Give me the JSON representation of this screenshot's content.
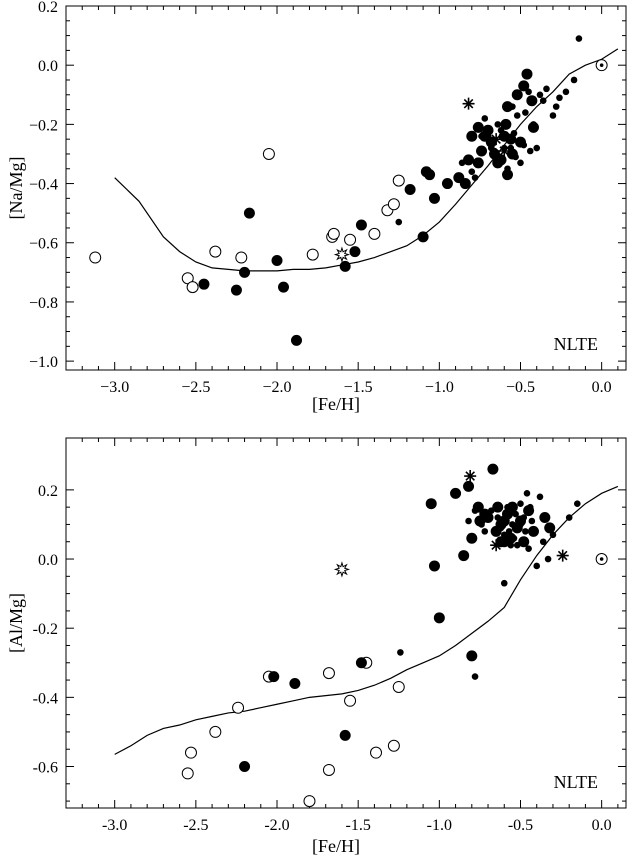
{
  "chart_data": [
    {
      "type": "scatter",
      "xlabel": "[Fe/H]",
      "ylabel": "[Na/Mg]",
      "annotation": "NLTE",
      "xlim": [
        -3.3,
        0.15
      ],
      "ylim": [
        -1.03,
        0.2
      ],
      "xticks": [
        -3.0,
        -2.5,
        -2.0,
        -1.5,
        -1.0,
        -0.5,
        0.0
      ],
      "xtick_labels": [
        "−3.0",
        "−2.5",
        "−2.0",
        "−1.5",
        "−1.0",
        "−0.5",
        "0.0"
      ],
      "yticks": [
        0.2,
        0.0,
        -0.2,
        -0.4,
        -0.6,
        -0.8,
        -1.0
      ],
      "ytick_labels": [
        "0.2",
        "0.0",
        "−0.2",
        "−0.4",
        "−0.6",
        "−0.8",
        "−1.0"
      ],
      "model_curve": [
        [
          -3.0,
          -0.38
        ],
        [
          -2.85,
          -0.46
        ],
        [
          -2.7,
          -0.58
        ],
        [
          -2.6,
          -0.63
        ],
        [
          -2.5,
          -0.665
        ],
        [
          -2.4,
          -0.685
        ],
        [
          -2.3,
          -0.69
        ],
        [
          -2.2,
          -0.695
        ],
        [
          -2.1,
          -0.695
        ],
        [
          -2.0,
          -0.695
        ],
        [
          -1.9,
          -0.69
        ],
        [
          -1.8,
          -0.69
        ],
        [
          -1.7,
          -0.685
        ],
        [
          -1.6,
          -0.675
        ],
        [
          -1.5,
          -0.665
        ],
        [
          -1.4,
          -0.65
        ],
        [
          -1.3,
          -0.63
        ],
        [
          -1.2,
          -0.61
        ],
        [
          -1.1,
          -0.575
        ],
        [
          -1.0,
          -0.53
        ],
        [
          -0.9,
          -0.47
        ],
        [
          -0.8,
          -0.405
        ],
        [
          -0.7,
          -0.34
        ],
        [
          -0.6,
          -0.27
        ],
        [
          -0.5,
          -0.2
        ],
        [
          -0.4,
          -0.14
        ],
        [
          -0.3,
          -0.09
        ],
        [
          -0.2,
          -0.03
        ],
        [
          -0.1,
          0.0
        ],
        [
          0.0,
          0.02
        ],
        [
          0.1,
          0.055
        ]
      ],
      "series": [
        {
          "name": "",
          "marker": "open-circle",
          "points": [
            [
              -3.12,
              -0.65
            ],
            [
              -2.55,
              -0.72
            ],
            [
              -2.52,
              -0.75
            ],
            [
              -2.38,
              -0.63
            ],
            [
              -2.22,
              -0.65
            ],
            [
              -2.05,
              -0.3
            ],
            [
              -1.78,
              -0.64
            ],
            [
              -1.66,
              -0.58
            ],
            [
              -1.65,
              -0.57
            ],
            [
              -1.55,
              -0.59
            ],
            [
              -1.4,
              -0.57
            ],
            [
              -1.32,
              -0.49
            ],
            [
              -1.28,
              -0.47
            ],
            [
              -1.25,
              -0.39
            ]
          ]
        },
        {
          "name": "",
          "marker": "filled-large",
          "points": [
            [
              -2.45,
              -0.74
            ],
            [
              -2.25,
              -0.76
            ],
            [
              -2.2,
              -0.7
            ],
            [
              -2.17,
              -0.5
            ],
            [
              -2.0,
              -0.66
            ],
            [
              -1.96,
              -0.75
            ],
            [
              -1.88,
              -0.93
            ],
            [
              -1.58,
              -0.68
            ],
            [
              -1.52,
              -0.63
            ],
            [
              -1.48,
              -0.54
            ],
            [
              -1.18,
              -0.42
            ],
            [
              -1.1,
              -0.58
            ],
            [
              -1.08,
              -0.36
            ],
            [
              -1.06,
              -0.37
            ],
            [
              -1.03,
              -0.45
            ],
            [
              -0.95,
              -0.4
            ],
            [
              -0.88,
              -0.38
            ],
            [
              -0.82,
              -0.32
            ],
            [
              -0.8,
              -0.24
            ],
            [
              -0.76,
              -0.33
            ],
            [
              -0.74,
              -0.29
            ],
            [
              -0.72,
              -0.24
            ],
            [
              -0.7,
              -0.22
            ],
            [
              -0.68,
              -0.26
            ],
            [
              -0.66,
              -0.3
            ],
            [
              -0.64,
              -0.33
            ],
            [
              -0.62,
              -0.32
            ],
            [
              -0.6,
              -0.24
            ],
            [
              -0.59,
              -0.2
            ],
            [
              -0.58,
              -0.14
            ],
            [
              -0.56,
              -0.25
            ],
            [
              -0.55,
              -0.3
            ],
            [
              -0.52,
              -0.1
            ],
            [
              -0.5,
              -0.26
            ],
            [
              -0.48,
              -0.07
            ],
            [
              -0.46,
              -0.03
            ],
            [
              -0.43,
              -0.12
            ],
            [
              -0.42,
              -0.21
            ],
            [
              -0.76,
              -0.21
            ],
            [
              -0.84,
              -0.4
            ],
            [
              -0.58,
              -0.37
            ]
          ]
        },
        {
          "name": "",
          "marker": "filled-small",
          "points": [
            [
              -1.25,
              -0.53
            ],
            [
              -0.86,
              -0.33
            ],
            [
              -0.8,
              -0.36
            ],
            [
              -0.78,
              -0.38
            ],
            [
              -0.74,
              -0.24
            ],
            [
              -0.7,
              -0.24
            ],
            [
              -0.68,
              -0.28
            ],
            [
              -0.66,
              -0.29
            ],
            [
              -0.62,
              -0.22
            ],
            [
              -0.6,
              -0.2
            ],
            [
              -0.6,
              -0.28
            ],
            [
              -0.58,
              -0.35
            ],
            [
              -0.56,
              -0.28
            ],
            [
              -0.55,
              -0.14
            ],
            [
              -0.54,
              -0.23
            ],
            [
              -0.53,
              -0.31
            ],
            [
              -0.52,
              -0.17
            ],
            [
              -0.51,
              -0.26
            ],
            [
              -0.5,
              -0.33
            ],
            [
              -0.48,
              -0.27
            ],
            [
              -0.47,
              -0.16
            ],
            [
              -0.45,
              -0.09
            ],
            [
              -0.44,
              -0.29
            ],
            [
              -0.42,
              -0.2
            ],
            [
              -0.4,
              -0.28
            ],
            [
              -0.38,
              -0.1
            ],
            [
              -0.36,
              -0.12
            ],
            [
              -0.34,
              -0.08
            ],
            [
              -0.3,
              -0.17
            ],
            [
              -0.28,
              -0.14
            ],
            [
              -0.26,
              -0.11
            ],
            [
              -0.22,
              -0.09
            ],
            [
              -0.17,
              -0.05
            ],
            [
              -0.14,
              0.09
            ],
            [
              -0.72,
              -0.18
            ],
            [
              -0.64,
              -0.2
            ]
          ]
        },
        {
          "name": "",
          "marker": "star-filled",
          "points": [
            [
              -0.82,
              -0.13
            ],
            [
              -0.65,
              -0.25
            ],
            [
              -0.6,
              -0.29
            ]
          ]
        },
        {
          "name": "",
          "marker": "star-open",
          "points": [
            [
              -1.6,
              -0.64
            ]
          ]
        },
        {
          "name": "",
          "marker": "sun",
          "points": [
            [
              0.0,
              0.0
            ]
          ]
        }
      ]
    },
    {
      "type": "scatter",
      "xlabel": "[Fe/H]",
      "ylabel": "[Al/Mg]",
      "annotation": "NLTE",
      "xlim": [
        -3.3,
        0.15
      ],
      "ylim": [
        -0.72,
        0.35
      ],
      "xticks": [
        -3.0,
        -2.5,
        -2.0,
        -1.5,
        -1.0,
        -0.5,
        0.0
      ],
      "xtick_labels": [
        "-3.0",
        "-2.5",
        "-2.0",
        "-1.5",
        "-1.0",
        "-0.5",
        "0.0"
      ],
      "yticks": [
        0.2,
        0.0,
        -0.2,
        -0.4,
        -0.6
      ],
      "ytick_labels": [
        "0.2",
        "0.0",
        "-0.2",
        "-0.4",
        "-0.6"
      ],
      "model_curve": [
        [
          -3.0,
          -0.565
        ],
        [
          -2.9,
          -0.54
        ],
        [
          -2.8,
          -0.51
        ],
        [
          -2.7,
          -0.49
        ],
        [
          -2.6,
          -0.48
        ],
        [
          -2.5,
          -0.465
        ],
        [
          -2.4,
          -0.455
        ],
        [
          -2.3,
          -0.445
        ],
        [
          -2.2,
          -0.44
        ],
        [
          -2.1,
          -0.43
        ],
        [
          -2.0,
          -0.42
        ],
        [
          -1.9,
          -0.41
        ],
        [
          -1.8,
          -0.4
        ],
        [
          -1.7,
          -0.395
        ],
        [
          -1.6,
          -0.39
        ],
        [
          -1.5,
          -0.38
        ],
        [
          -1.4,
          -0.365
        ],
        [
          -1.3,
          -0.345
        ],
        [
          -1.2,
          -0.32
        ],
        [
          -1.1,
          -0.3
        ],
        [
          -1.0,
          -0.28
        ],
        [
          -0.9,
          -0.25
        ],
        [
          -0.8,
          -0.215
        ],
        [
          -0.7,
          -0.18
        ],
        [
          -0.6,
          -0.14
        ],
        [
          -0.5,
          -0.06
        ],
        [
          -0.4,
          0.01
        ],
        [
          -0.3,
          0.07
        ],
        [
          -0.2,
          0.12
        ],
        [
          -0.1,
          0.16
        ],
        [
          0.0,
          0.19
        ],
        [
          0.1,
          0.21
        ]
      ],
      "series": [
        {
          "name": "",
          "marker": "open-circle",
          "points": [
            [
              -2.55,
              -0.62
            ],
            [
              -2.53,
              -0.56
            ],
            [
              -2.38,
              -0.5
            ],
            [
              -2.24,
              -0.43
            ],
            [
              -2.05,
              -0.34
            ],
            [
              -1.68,
              -0.33
            ],
            [
              -1.68,
              -0.61
            ],
            [
              -1.8,
              -0.7
            ],
            [
              -1.55,
              -0.41
            ],
            [
              -1.45,
              -0.3
            ],
            [
              -1.39,
              -0.56
            ],
            [
              -1.28,
              -0.54
            ],
            [
              -1.25,
              -0.37
            ]
          ]
        },
        {
          "name": "",
          "marker": "filled-large",
          "points": [
            [
              -2.2,
              -0.6
            ],
            [
              -2.02,
              -0.34
            ],
            [
              -1.89,
              -0.36
            ],
            [
              -1.48,
              -0.3
            ],
            [
              -1.58,
              -0.51
            ],
            [
              -1.05,
              0.16
            ],
            [
              -0.9,
              0.19
            ],
            [
              -0.82,
              0.21
            ],
            [
              -0.7,
              0.12
            ],
            [
              -0.67,
              0.26
            ],
            [
              -0.62,
              0.1
            ],
            [
              -0.6,
              0.05
            ],
            [
              -0.58,
              0.13
            ],
            [
              -0.56,
              0.06
            ],
            [
              -0.55,
              0.15
            ],
            [
              -0.52,
              0.09
            ],
            [
              -0.5,
              0.11
            ],
            [
              -0.48,
              0.05
            ],
            [
              -0.45,
              0.14
            ],
            [
              -0.42,
              0.08
            ],
            [
              -0.35,
              0.12
            ],
            [
              -0.32,
              0.09
            ],
            [
              -0.75,
              0.11
            ],
            [
              -0.8,
              0.06
            ],
            [
              -0.85,
              0.01
            ],
            [
              -1.03,
              -0.02
            ],
            [
              -0.8,
              -0.28
            ],
            [
              -1.0,
              -0.17
            ],
            [
              -0.76,
              0.15
            ],
            [
              -0.72,
              0.13
            ],
            [
              -0.64,
              0.15
            ],
            [
              -0.62,
              0.05
            ],
            [
              -0.6,
              0.11
            ],
            [
              -0.65,
              0.08
            ]
          ]
        },
        {
          "name": "",
          "marker": "filled-small",
          "points": [
            [
              -1.24,
              -0.27
            ],
            [
              -0.78,
              -0.34
            ],
            [
              -0.82,
              0.11
            ],
            [
              -0.78,
              0.14
            ],
            [
              -0.74,
              0.1
            ],
            [
              -0.72,
              0.08
            ],
            [
              -0.68,
              0.14
            ],
            [
              -0.66,
              0.08
            ],
            [
              -0.64,
              0.12
            ],
            [
              -0.62,
              0.09
            ],
            [
              -0.6,
              0.07
            ],
            [
              -0.6,
              -0.07
            ],
            [
              -0.58,
              0.15
            ],
            [
              -0.56,
              0.04
            ],
            [
              -0.55,
              0.1
            ],
            [
              -0.54,
              0.06
            ],
            [
              -0.53,
              0.13
            ],
            [
              -0.52,
              0.04
            ],
            [
              -0.5,
              0.16
            ],
            [
              -0.48,
              0.12
            ],
            [
              -0.47,
              0.08
            ],
            [
              -0.46,
              0.19
            ],
            [
              -0.45,
              0.03
            ],
            [
              -0.44,
              0.15
            ],
            [
              -0.43,
              0.11
            ],
            [
              -0.41,
              0.08
            ],
            [
              -0.4,
              -0.02
            ],
            [
              -0.38,
              0.18
            ],
            [
              -0.36,
              0.05
            ],
            [
              -0.33,
              0.0
            ],
            [
              -0.3,
              0.07
            ],
            [
              -0.2,
              0.12
            ],
            [
              -0.15,
              0.16
            ],
            [
              -0.5,
              0.1
            ],
            [
              -0.57,
              0.08
            ]
          ]
        },
        {
          "name": "",
          "marker": "star-filled",
          "points": [
            [
              -0.81,
              0.24
            ],
            [
              -0.65,
              0.04
            ],
            [
              -0.24,
              0.01
            ]
          ]
        },
        {
          "name": "",
          "marker": "star-open",
          "points": [
            [
              -1.6,
              -0.03
            ]
          ]
        },
        {
          "name": "",
          "marker": "sun",
          "points": [
            [
              0.0,
              0.0
            ]
          ]
        }
      ]
    }
  ]
}
